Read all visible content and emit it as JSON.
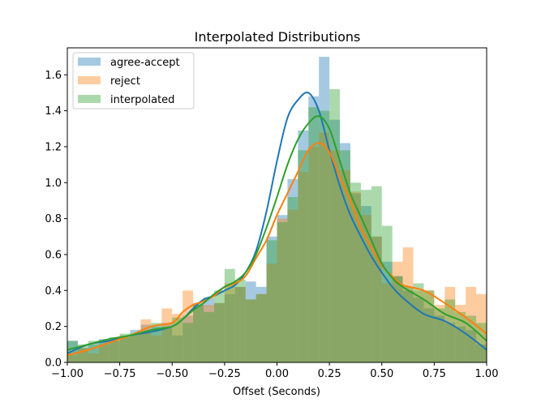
{
  "chart_data": {
    "type": "bar",
    "title": "Interpolated Distributions",
    "xlabel": "Offset (Seconds)",
    "ylabel": "",
    "xlim": [
      -1.0,
      1.0
    ],
    "ylim": [
      0.0,
      1.75
    ],
    "xticks": [
      "−1.00",
      "−0.75",
      "−0.50",
      "−0.25",
      "0.00",
      "0.25",
      "0.50",
      "0.75",
      "1.00"
    ],
    "yticks": [
      "0.0",
      "0.2",
      "0.4",
      "0.6",
      "0.8",
      "1.0",
      "1.2",
      "1.4",
      "1.6"
    ],
    "grid": false,
    "legend_position": "upper-left",
    "bin_edges": [
      -1.0,
      -0.95,
      -0.9,
      -0.85,
      -0.8,
      -0.75,
      -0.7,
      -0.65,
      -0.6,
      -0.55,
      -0.5,
      -0.45,
      -0.4,
      -0.35,
      -0.3,
      -0.25,
      -0.2,
      -0.15,
      -0.1,
      -0.05,
      0.0,
      0.05,
      0.1,
      0.15,
      0.2,
      0.25,
      0.3,
      0.35,
      0.4,
      0.45,
      0.5,
      0.55,
      0.6,
      0.65,
      0.7,
      0.75,
      0.8,
      0.85,
      0.9,
      0.95,
      1.0
    ],
    "series": [
      {
        "name": "agree-accept",
        "color": "#1f77b4",
        "hist": [
          0.12,
          0.08,
          0.1,
          0.13,
          0.12,
          0.14,
          0.18,
          0.21,
          0.2,
          0.22,
          0.15,
          0.26,
          0.33,
          0.36,
          0.33,
          0.38,
          0.42,
          0.45,
          0.42,
          0.7,
          0.82,
          1.02,
          1.29,
          1.48,
          1.7,
          1.35,
          1.22,
          0.94,
          0.87,
          0.7,
          0.56,
          0.48,
          0.4,
          0.36,
          0.3,
          0.26,
          0.22,
          0.2,
          0.18,
          0.1
        ],
        "kde_x": [
          -1.0,
          -0.9,
          -0.8,
          -0.7,
          -0.6,
          -0.5,
          -0.45,
          -0.4,
          -0.35,
          -0.3,
          -0.25,
          -0.2,
          -0.15,
          -0.1,
          -0.05,
          0.0,
          0.05,
          0.1,
          0.15,
          0.2,
          0.25,
          0.3,
          0.35,
          0.4,
          0.45,
          0.5,
          0.55,
          0.6,
          0.7,
          0.8,
          0.9,
          1.0
        ],
        "kde_y": [
          0.05,
          0.1,
          0.12,
          0.15,
          0.17,
          0.2,
          0.24,
          0.3,
          0.35,
          0.37,
          0.4,
          0.43,
          0.5,
          0.62,
          0.84,
          1.12,
          1.36,
          1.46,
          1.5,
          1.4,
          1.18,
          0.98,
          0.82,
          0.7,
          0.59,
          0.5,
          0.42,
          0.36,
          0.27,
          0.23,
          0.16,
          0.07
        ]
      },
      {
        "name": "reject",
        "color": "#ff7f0e",
        "hist": [
          0.04,
          0.08,
          0.05,
          0.1,
          0.12,
          0.15,
          0.16,
          0.24,
          0.15,
          0.3,
          0.27,
          0.4,
          0.32,
          0.32,
          0.33,
          0.44,
          0.42,
          0.35,
          0.38,
          0.55,
          0.8,
          0.85,
          1.06,
          1.2,
          1.28,
          1.18,
          1.07,
          0.95,
          0.82,
          0.7,
          0.44,
          0.56,
          0.64,
          0.4,
          0.4,
          0.32,
          0.42,
          0.32,
          0.42,
          0.38
        ],
        "kde_x": [
          -1.0,
          -0.9,
          -0.8,
          -0.7,
          -0.6,
          -0.5,
          -0.45,
          -0.4,
          -0.35,
          -0.3,
          -0.25,
          -0.2,
          -0.15,
          -0.1,
          -0.05,
          0.0,
          0.05,
          0.1,
          0.15,
          0.2,
          0.25,
          0.3,
          0.35,
          0.4,
          0.45,
          0.5,
          0.55,
          0.6,
          0.7,
          0.8,
          0.9,
          1.0
        ],
        "kde_y": [
          0.04,
          0.07,
          0.11,
          0.15,
          0.2,
          0.22,
          0.28,
          0.32,
          0.34,
          0.37,
          0.42,
          0.44,
          0.48,
          0.58,
          0.68,
          0.82,
          0.94,
          1.06,
          1.18,
          1.22,
          1.17,
          1.03,
          0.9,
          0.75,
          0.64,
          0.54,
          0.48,
          0.43,
          0.4,
          0.33,
          0.25,
          0.16
        ]
      },
      {
        "name": "interpolated",
        "color": "#2ca02c",
        "hist": [
          0.12,
          0.1,
          0.12,
          0.12,
          0.14,
          0.16,
          0.16,
          0.17,
          0.22,
          0.2,
          0.25,
          0.22,
          0.32,
          0.28,
          0.4,
          0.52,
          0.46,
          0.35,
          0.38,
          0.68,
          0.78,
          0.92,
          1.18,
          1.42,
          1.4,
          1.52,
          1.18,
          1.0,
          0.96,
          0.98,
          0.76,
          0.48,
          0.42,
          0.44,
          0.4,
          0.3,
          0.35,
          0.28,
          0.26,
          0.22
        ],
        "kde_x": [
          -1.0,
          -0.9,
          -0.8,
          -0.7,
          -0.6,
          -0.5,
          -0.45,
          -0.4,
          -0.35,
          -0.3,
          -0.25,
          -0.2,
          -0.15,
          -0.1,
          -0.05,
          0.0,
          0.05,
          0.1,
          0.15,
          0.2,
          0.25,
          0.3,
          0.35,
          0.4,
          0.45,
          0.5,
          0.55,
          0.6,
          0.7,
          0.8,
          0.9,
          1.0
        ],
        "kde_y": [
          0.07,
          0.1,
          0.13,
          0.15,
          0.18,
          0.2,
          0.24,
          0.29,
          0.33,
          0.38,
          0.42,
          0.45,
          0.5,
          0.6,
          0.75,
          0.92,
          1.1,
          1.24,
          1.33,
          1.37,
          1.3,
          1.12,
          0.94,
          0.81,
          0.68,
          0.55,
          0.47,
          0.42,
          0.35,
          0.27,
          0.22,
          0.12
        ]
      }
    ]
  }
}
